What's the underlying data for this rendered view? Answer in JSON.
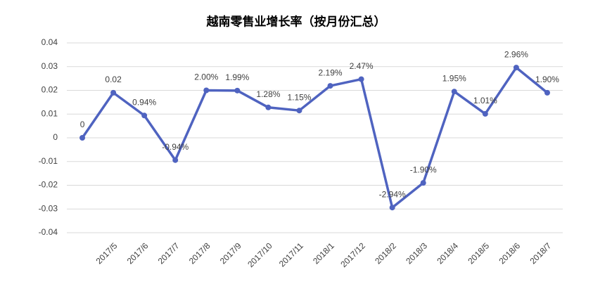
{
  "chart_data": {
    "type": "line",
    "title": "越南零售业增长率（按月份汇总）",
    "categories": [
      null,
      "2017/5",
      "2017/6",
      "2017/7",
      "2017/8",
      "2017/9",
      "2017/10",
      "2017/11",
      "2018/1",
      "2017/12",
      "2018/2",
      "2018/3",
      "2018/4",
      "2018/5",
      "2018/6",
      "2018/7"
    ],
    "values": [
      0,
      0.019,
      0.0094,
      -0.0094,
      0.02,
      0.0199,
      0.0128,
      0.0115,
      0.0219,
      0.0247,
      -0.0294,
      -0.019,
      0.0195,
      0.0101,
      0.0296,
      0.019
    ],
    "value_labels": [
      "0",
      "0.02",
      "0.94%",
      "-0.94%",
      "2.00%",
      "1.99%",
      "1.28%",
      "1.15%",
      "2.19%",
      "2.47%",
      "-2.94%",
      "-1.90%",
      "1.95%",
      "1.01%",
      "2.96%",
      "1.90%"
    ],
    "color": "#4f63c0",
    "ylim": [
      -0.04,
      0.04
    ],
    "yticks": [
      -0.04,
      -0.03,
      -0.02,
      -0.01,
      0,
      0.01,
      0.02,
      0.03,
      0.04
    ],
    "grid": true
  }
}
